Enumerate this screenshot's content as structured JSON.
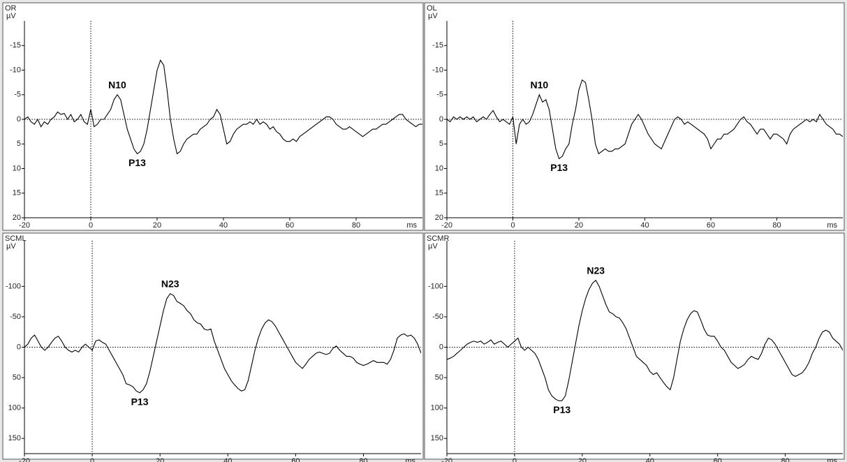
{
  "chart_data": [
    {
      "type": "line",
      "title": "OR",
      "y_label": "µV",
      "x_label": "ms",
      "color": "#000000",
      "xlim": [
        -20,
        100
      ],
      "xticks": [
        -20,
        0,
        20,
        40,
        60,
        80
      ],
      "ylim": [
        -20,
        20
      ],
      "yticks": [
        -15,
        -10,
        -5,
        0,
        5,
        10,
        15,
        20
      ],
      "y_inverted": true,
      "x": [
        -20,
        -19,
        -18,
        -17,
        -16,
        -15,
        -14,
        -13,
        -12,
        -11,
        -10,
        -9,
        -8,
        -7,
        -6,
        -5,
        -4,
        -3,
        -2,
        -1,
        0,
        1,
        2,
        3,
        4,
        5,
        6,
        7,
        8,
        9,
        10,
        11,
        12,
        13,
        14,
        15,
        16,
        17,
        18,
        19,
        20,
        21,
        22,
        23,
        24,
        25,
        26,
        27,
        28,
        29,
        30,
        31,
        32,
        33,
        34,
        35,
        36,
        37,
        38,
        39,
        40,
        41,
        42,
        43,
        44,
        45,
        46,
        47,
        48,
        49,
        50,
        51,
        52,
        53,
        54,
        55,
        56,
        57,
        58,
        59,
        60,
        61,
        62,
        63,
        64,
        65,
        66,
        67,
        68,
        69,
        70,
        71,
        72,
        73,
        74,
        75,
        76,
        77,
        78,
        79,
        80,
        81,
        82,
        83,
        84,
        85,
        86,
        87,
        88,
        89,
        90,
        91,
        92,
        93,
        94,
        95,
        96,
        97,
        98,
        99,
        100
      ],
      "values": [
        0,
        -0.5,
        0.5,
        1,
        0,
        1.5,
        0.5,
        1,
        0,
        -0.5,
        -1.5,
        -1,
        -1.2,
        0,
        -1,
        0.5,
        0,
        -1,
        0.5,
        1,
        -2,
        1.5,
        1,
        0,
        0,
        -1,
        -2,
        -4,
        -5,
        -4,
        -1,
        2,
        4,
        6,
        7,
        6.5,
        5,
        2,
        -2,
        -6,
        -10,
        -12,
        -11,
        -6,
        0,
        4,
        7,
        6.5,
        5,
        4,
        3.5,
        3,
        3,
        2,
        1.5,
        1,
        0,
        -0.5,
        -2,
        -1,
        2,
        5,
        4.5,
        3,
        2,
        1.5,
        1,
        1,
        0.5,
        1,
        0,
        1,
        0.5,
        1,
        2,
        1.5,
        2.5,
        3,
        4,
        4.5,
        4.5,
        4,
        4.5,
        3.5,
        3,
        2.5,
        2,
        1.5,
        1,
        0.5,
        0,
        -0.5,
        -0.5,
        0,
        1,
        1.5,
        2,
        2,
        1.5,
        2,
        2.5,
        3,
        3.5,
        3,
        2.5,
        2,
        2,
        1.5,
        1,
        1,
        0.5,
        0,
        -0.5,
        -1,
        -1,
        0,
        0.5,
        1,
        1.5,
        1,
        1
      ],
      "annotations": [
        {
          "text": "N10",
          "x": 8,
          "y": -5
        },
        {
          "text": "P13",
          "x": 14,
          "y": 7
        }
      ]
    },
    {
      "type": "line",
      "title": "OL",
      "y_label": "µV",
      "x_label": "ms",
      "color": "#000000",
      "xlim": [
        -20,
        100
      ],
      "xticks": [
        -20,
        0,
        20,
        40,
        60,
        80
      ],
      "ylim": [
        -20,
        20
      ],
      "yticks": [
        -15,
        -10,
        -5,
        0,
        5,
        10,
        15,
        20
      ],
      "y_inverted": true,
      "x": [
        -20,
        -19,
        -18,
        -17,
        -16,
        -15,
        -14,
        -13,
        -12,
        -11,
        -10,
        -9,
        -8,
        -7,
        -6,
        -5,
        -4,
        -3,
        -2,
        -1,
        0,
        1,
        2,
        3,
        4,
        5,
        6,
        7,
        8,
        9,
        10,
        11,
        12,
        13,
        14,
        15,
        16,
        17,
        18,
        19,
        20,
        21,
        22,
        23,
        24,
        25,
        26,
        27,
        28,
        29,
        30,
        31,
        32,
        33,
        34,
        35,
        36,
        37,
        38,
        39,
        40,
        41,
        42,
        43,
        44,
        45,
        46,
        47,
        48,
        49,
        50,
        51,
        52,
        53,
        54,
        55,
        56,
        57,
        58,
        59,
        60,
        61,
        62,
        63,
        64,
        65,
        66,
        67,
        68,
        69,
        70,
        71,
        72,
        73,
        74,
        75,
        76,
        77,
        78,
        79,
        80,
        81,
        82,
        83,
        84,
        85,
        86,
        87,
        88,
        89,
        90,
        91,
        92,
        93,
        94,
        95,
        96,
        97,
        98,
        99,
        100
      ],
      "values": [
        0,
        0.5,
        -0.5,
        0,
        -0.5,
        0,
        -0.5,
        0,
        -0.5,
        0.5,
        0,
        -0.5,
        0,
        -1,
        -1.8,
        -0.5,
        0.5,
        0,
        0.5,
        1,
        -0.5,
        5,
        1,
        0,
        1,
        0.5,
        -1,
        -3,
        -5,
        -3.5,
        -4,
        -2,
        2,
        6,
        8,
        7.5,
        6,
        5,
        1,
        -2,
        -6,
        -8,
        -7.5,
        -4,
        0,
        5,
        7,
        6.5,
        6,
        6.5,
        6.5,
        6,
        6,
        5.5,
        5,
        3,
        1,
        0,
        -1,
        0,
        1.5,
        3,
        4,
        5,
        5.5,
        6,
        4.5,
        3,
        1.5,
        0,
        -0.5,
        0,
        1,
        0.5,
        1,
        1.5,
        2,
        2.5,
        3,
        4,
        6,
        5,
        4,
        4,
        3,
        3,
        2.5,
        2,
        1,
        0,
        -0.5,
        0.5,
        1,
        2,
        3,
        2,
        2,
        3,
        4,
        3,
        3,
        3.5,
        4,
        5,
        3,
        2,
        1.5,
        1,
        0.5,
        0,
        0.5,
        0,
        0.5,
        -1,
        0,
        1,
        1.5,
        2,
        3,
        3,
        3.5
      ],
      "annotations": [
        {
          "text": "N10",
          "x": 8,
          "y": -5
        },
        {
          "text": "P13",
          "x": 14,
          "y": 8
        }
      ]
    },
    {
      "type": "line",
      "title": "SCML",
      "y_label": "µV",
      "x_label": "ms",
      "color": "#000000",
      "xlim": [
        -20,
        97
      ],
      "xticks": [
        -20,
        0,
        20,
        40,
        60,
        80
      ],
      "ylim": [
        -175,
        175
      ],
      "yticks": [
        -100,
        -50,
        0,
        50,
        100,
        150
      ],
      "y_inverted": true,
      "x": [
        -20,
        -19,
        -18,
        -17,
        -16,
        -15,
        -14,
        -13,
        -12,
        -11,
        -10,
        -9,
        -8,
        -7,
        -6,
        -5,
        -4,
        -3,
        -2,
        -1,
        0,
        1,
        2,
        3,
        4,
        5,
        6,
        7,
        8,
        9,
        10,
        11,
        12,
        13,
        14,
        15,
        16,
        17,
        18,
        19,
        20,
        21,
        22,
        23,
        24,
        25,
        26,
        27,
        28,
        29,
        30,
        31,
        32,
        33,
        34,
        35,
        36,
        37,
        38,
        39,
        40,
        41,
        42,
        43,
        44,
        45,
        46,
        47,
        48,
        49,
        50,
        51,
        52,
        53,
        54,
        55,
        56,
        57,
        58,
        59,
        60,
        61,
        62,
        63,
        64,
        65,
        66,
        67,
        68,
        69,
        70,
        71,
        72,
        73,
        74,
        75,
        76,
        77,
        78,
        79,
        80,
        81,
        82,
        83,
        84,
        85,
        86,
        87,
        88,
        89,
        90,
        91,
        92,
        93,
        94,
        95,
        96,
        97
      ],
      "values": [
        0,
        -5,
        -15,
        -20,
        -10,
        0,
        5,
        0,
        -8,
        -15,
        -18,
        -10,
        0,
        5,
        8,
        5,
        8,
        0,
        -5,
        0,
        5,
        -10,
        -12,
        -8,
        -5,
        5,
        15,
        25,
        35,
        45,
        60,
        62,
        65,
        72,
        75,
        70,
        60,
        40,
        15,
        -10,
        -35,
        -60,
        -80,
        -88,
        -85,
        -75,
        -72,
        -68,
        -60,
        -55,
        -45,
        -40,
        -38,
        -30,
        -28,
        -30,
        -10,
        5,
        20,
        35,
        45,
        55,
        62,
        68,
        72,
        70,
        55,
        30,
        5,
        -15,
        -30,
        -40,
        -45,
        -42,
        -35,
        -25,
        -15,
        -5,
        5,
        15,
        25,
        30,
        35,
        28,
        20,
        15,
        10,
        8,
        10,
        12,
        10,
        2,
        -2,
        5,
        10,
        15,
        15,
        18,
        25,
        28,
        30,
        28,
        25,
        22,
        25,
        25,
        25,
        28,
        20,
        5,
        -15,
        -20,
        -22,
        -18,
        -20,
        -15,
        -5,
        10
      ],
      "annotations": [
        {
          "text": "N23",
          "x": 23,
          "y": -88
        },
        {
          "text": "P13",
          "x": 14,
          "y": 75
        }
      ]
    },
    {
      "type": "line",
      "title": "SCMR",
      "y_label": "µV",
      "x_label": "ms",
      "color": "#000000",
      "xlim": [
        -20,
        97
      ],
      "xticks": [
        -20,
        0,
        20,
        40,
        60,
        80
      ],
      "ylim": [
        -175,
        175
      ],
      "yticks": [
        -100,
        -50,
        0,
        50,
        100,
        150
      ],
      "y_inverted": true,
      "x": [
        -20,
        -19,
        -18,
        -17,
        -16,
        -15,
        -14,
        -13,
        -12,
        -11,
        -10,
        -9,
        -8,
        -7,
        -6,
        -5,
        -4,
        -3,
        -2,
        -1,
        0,
        1,
        2,
        3,
        4,
        5,
        6,
        7,
        8,
        9,
        10,
        11,
        12,
        13,
        14,
        15,
        16,
        17,
        18,
        19,
        20,
        21,
        22,
        23,
        24,
        25,
        26,
        27,
        28,
        29,
        30,
        31,
        32,
        33,
        34,
        35,
        36,
        37,
        38,
        39,
        40,
        41,
        42,
        43,
        44,
        45,
        46,
        47,
        48,
        49,
        50,
        51,
        52,
        53,
        54,
        55,
        56,
        57,
        58,
        59,
        60,
        61,
        62,
        63,
        64,
        65,
        66,
        67,
        68,
        69,
        70,
        71,
        72,
        73,
        74,
        75,
        76,
        77,
        78,
        79,
        80,
        81,
        82,
        83,
        84,
        85,
        86,
        87,
        88,
        89,
        90,
        91,
        92,
        93,
        94,
        95,
        96,
        97
      ],
      "values": [
        20,
        18,
        15,
        10,
        5,
        0,
        -5,
        -8,
        -10,
        -8,
        -10,
        -5,
        -8,
        -12,
        -5,
        -8,
        -10,
        -5,
        0,
        -5,
        -10,
        -15,
        0,
        5,
        0,
        5,
        10,
        20,
        35,
        50,
        70,
        80,
        85,
        88,
        88,
        80,
        55,
        25,
        -5,
        -35,
        -60,
        -80,
        -95,
        -105,
        -110,
        -100,
        -85,
        -70,
        -58,
        -55,
        -50,
        -48,
        -40,
        -30,
        -15,
        0,
        15,
        20,
        25,
        30,
        40,
        45,
        42,
        50,
        58,
        65,
        70,
        50,
        20,
        -10,
        -30,
        -45,
        -55,
        -60,
        -58,
        -45,
        -30,
        -20,
        -18,
        -18,
        -10,
        0,
        5,
        15,
        25,
        30,
        35,
        32,
        28,
        20,
        15,
        18,
        20,
        10,
        -5,
        -15,
        -12,
        -5,
        5,
        15,
        25,
        35,
        45,
        48,
        45,
        42,
        35,
        25,
        10,
        0,
        -15,
        -25,
        -28,
        -25,
        -15,
        -10,
        -5,
        5
      ],
      "annotations": [
        {
          "text": "N23",
          "x": 24,
          "y": -110
        },
        {
          "text": "P13",
          "x": 14,
          "y": 88
        }
      ]
    }
  ]
}
